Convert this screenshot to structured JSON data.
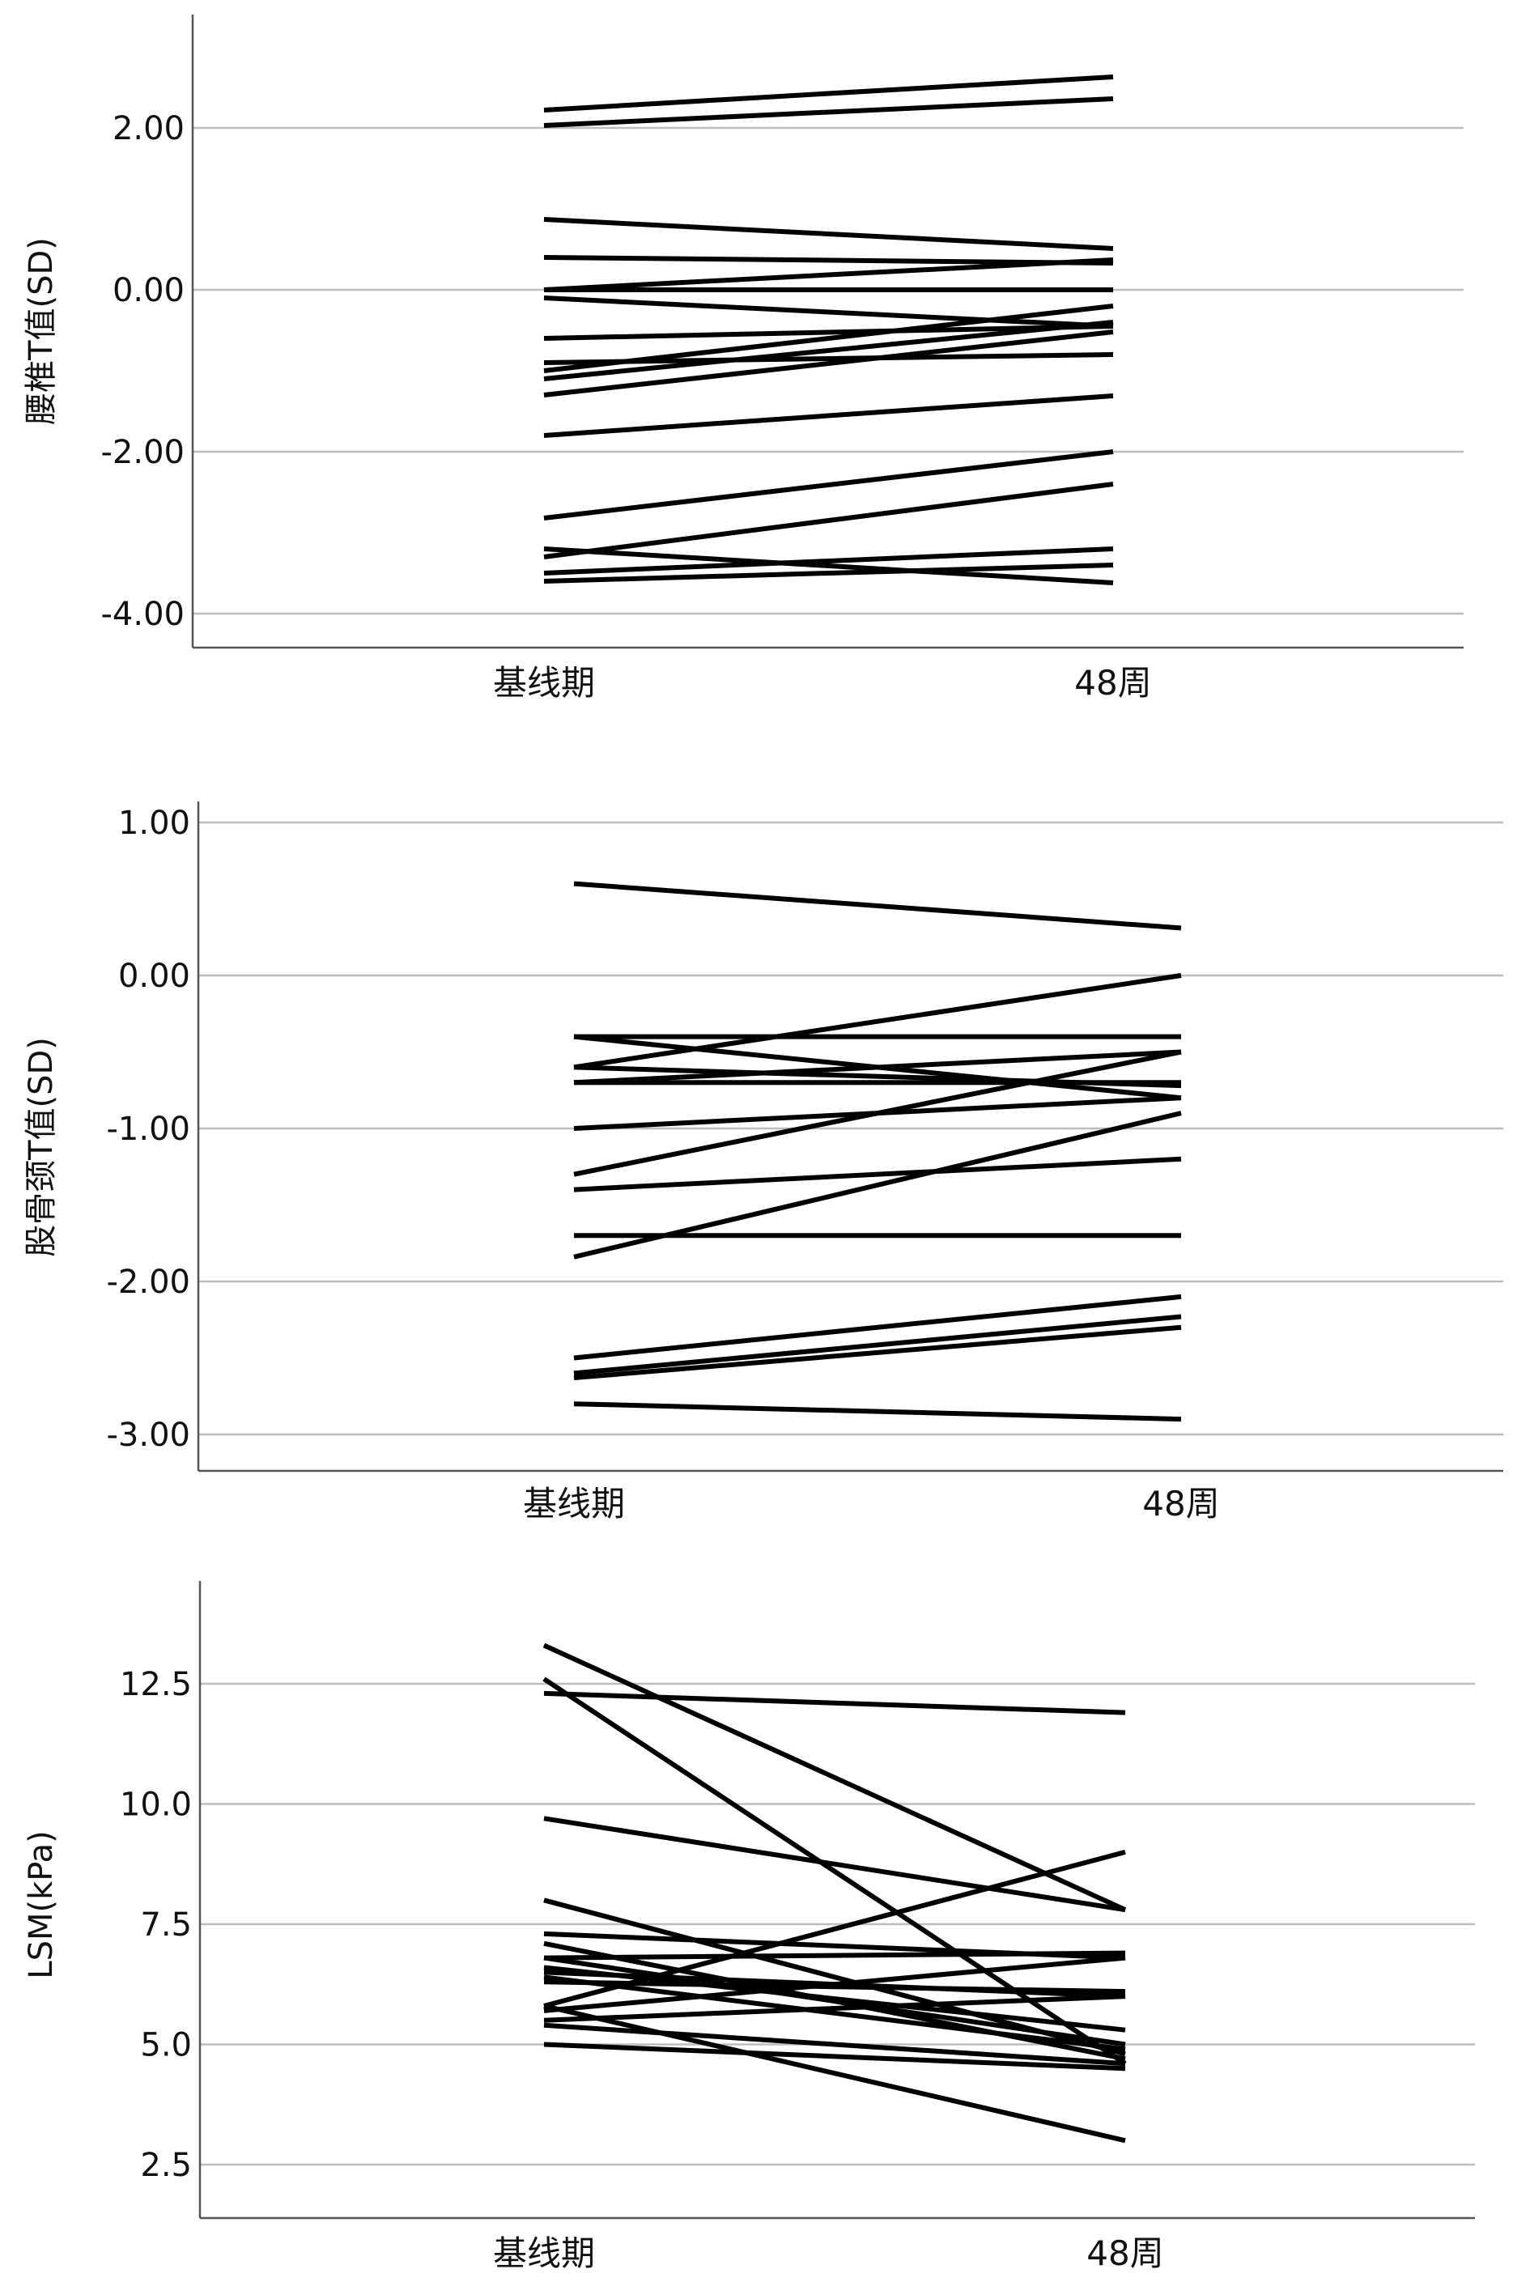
{
  "chart_data": [
    {
      "type": "line",
      "title": "",
      "xlabel": "",
      "ylabel": "腰椎T值(SD)",
      "categories": [
        "基线期",
        "48周"
      ],
      "ylim": [
        -4.4,
        3.4
      ],
      "yticks": [
        2.0,
        0.0,
        -2.0,
        -4.0
      ],
      "ytick_labels": [
        "2.00",
        "0.00",
        "-2.00",
        "-4.00"
      ],
      "grid": true,
      "series": [
        [
          2.22,
          2.63
        ],
        [
          2.03,
          2.36
        ],
        [
          0.87,
          0.51
        ],
        [
          0.4,
          0.33
        ],
        [
          0.0,
          0.37
        ],
        [
          0.0,
          0.0
        ],
        [
          -0.1,
          -0.45
        ],
        [
          -0.6,
          -0.45
        ],
        [
          -0.9,
          -0.8
        ],
        [
          -1.0,
          -0.2
        ],
        [
          -1.1,
          -0.4
        ],
        [
          -1.3,
          -0.52
        ],
        [
          -1.8,
          -1.31
        ],
        [
          -2.82,
          -2.0
        ],
        [
          -3.3,
          -2.4
        ],
        [
          -3.2,
          -3.62
        ],
        [
          -3.5,
          -3.2
        ],
        [
          -3.6,
          -3.4
        ]
      ]
    },
    {
      "type": "line",
      "title": "",
      "xlabel": "",
      "ylabel": "股骨颈T值(SD)",
      "categories": [
        "基线期",
        "48周"
      ],
      "ylim": [
        -3.2,
        1.2
      ],
      "yticks": [
        1.0,
        0.0,
        -1.0,
        -2.0,
        -3.0
      ],
      "ytick_labels": [
        "1.00",
        "0.00",
        "-1.00",
        "-2.00",
        "-3.00"
      ],
      "grid": true,
      "series": [
        [
          0.6,
          0.31
        ],
        [
          -0.4,
          -0.4
        ],
        [
          -0.4,
          -0.8
        ],
        [
          -0.6,
          0.0
        ],
        [
          -0.6,
          -0.72
        ],
        [
          -0.7,
          -0.5
        ],
        [
          -0.7,
          -0.7
        ],
        [
          -1.0,
          -0.8
        ],
        [
          -1.3,
          -0.5
        ],
        [
          -1.4,
          -1.2
        ],
        [
          -1.84,
          -0.9
        ],
        [
          -1.7,
          -1.7
        ],
        [
          -2.5,
          -2.1
        ],
        [
          -2.6,
          -2.23
        ],
        [
          -2.63,
          -2.3
        ],
        [
          -2.8,
          -2.9
        ]
      ]
    },
    {
      "type": "line",
      "title": "",
      "xlabel": "",
      "ylabel": "LSM(kPa)",
      "categories": [
        "基线期",
        "48周"
      ],
      "ylim": [
        1.4,
        14.7
      ],
      "yticks": [
        12.5,
        10.0,
        7.5,
        5.0,
        2.5
      ],
      "ytick_labels": [
        "12.5",
        "10.0",
        "7.5",
        "5.0",
        "2.5"
      ],
      "grid": true,
      "series": [
        [
          13.3,
          7.8
        ],
        [
          12.6,
          4.6
        ],
        [
          12.3,
          11.9
        ],
        [
          9.7,
          7.8
        ],
        [
          8.0,
          4.8
        ],
        [
          5.8,
          9.0
        ],
        [
          7.3,
          6.8
        ],
        [
          7.1,
          4.7
        ],
        [
          6.8,
          6.9
        ],
        [
          6.8,
          5.0
        ],
        [
          6.5,
          6.0
        ],
        [
          6.4,
          4.9
        ],
        [
          6.3,
          6.1
        ],
        [
          5.7,
          6.8
        ],
        [
          5.5,
          6.0
        ],
        [
          5.8,
          3.0
        ],
        [
          5.4,
          4.6
        ],
        [
          5.0,
          4.5
        ],
        [
          6.6,
          5.3
        ]
      ]
    }
  ]
}
